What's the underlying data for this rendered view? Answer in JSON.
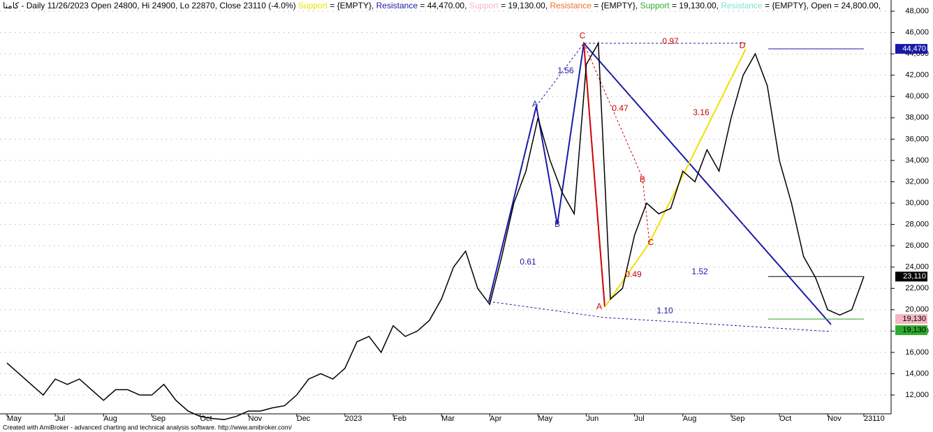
{
  "chart_data": {
    "type": "line",
    "header": [
      {
        "text": "كامنا - Daily 11/26/2023 Open 24800, Hi 24900, Lo 22870, Close 23110 (-4.0%) ",
        "color": "#000000"
      },
      {
        "text": "Support",
        "color": "#e6e600"
      },
      {
        "text": " = {EMPTY}, ",
        "color": "#000000"
      },
      {
        "text": "Resistance",
        "color": "#1a1aa8"
      },
      {
        "text": " = 44,470.00, ",
        "color": "#000000"
      },
      {
        "text": "Support",
        "color": "#f4b6c2"
      },
      {
        "text": " = 19,130.00, ",
        "color": "#000000"
      },
      {
        "text": "Resistance",
        "color": "#e8722a"
      },
      {
        "text": " = {EMPTY}, ",
        "color": "#000000"
      },
      {
        "text": "Support",
        "color": "#2eaa2e"
      },
      {
        "text": " = 19,130.00, ",
        "color": "#000000"
      },
      {
        "text": "Resistance",
        "color": "#7fe0d0"
      },
      {
        "text": " = {EMPTY}, Open = 24,800.00, ",
        "color": "#000000"
      }
    ],
    "footer": "Created with AmiBroker - advanced charting and technical analysis software. http://www.amibroker.com/",
    "categories": [
      "May",
      null,
      null,
      null,
      "Jul",
      null,
      null,
      null,
      "Aug",
      null,
      null,
      null,
      "Sep",
      null,
      null,
      null,
      "Oct",
      null,
      null,
      null,
      "Nov",
      null,
      null,
      null,
      "Dec",
      null,
      null,
      null,
      "2023",
      null,
      null,
      null,
      "Feb",
      null,
      null,
      null,
      "Mar",
      null,
      null,
      null,
      "Apr",
      null,
      null,
      null,
      "May",
      null,
      null,
      null,
      "Jun",
      null,
      null,
      null,
      "Jul",
      null,
      null,
      null,
      "Aug",
      null,
      null,
      null,
      "Sep",
      null,
      null,
      null,
      "Oct",
      null,
      null,
      null,
      "Nov",
      null,
      null,
      23110
    ],
    "series": [
      {
        "name": "Close",
        "color": "#000000",
        "values": [
          15000,
          14000,
          13000,
          12000,
          13500,
          13000,
          13500,
          12500,
          11500,
          12500,
          12500,
          12000,
          12000,
          13000,
          11500,
          10500,
          10000,
          9800,
          9700,
          10000,
          10500,
          10500,
          10800,
          11000,
          12000,
          13500,
          14000,
          13500,
          14500,
          17000,
          17500,
          16000,
          18500,
          17500,
          18000,
          19000,
          21000,
          24000,
          25500,
          22000,
          20500,
          25000,
          30000,
          33000,
          38000,
          34000,
          31000,
          29000,
          43000,
          45000,
          21000,
          22000,
          27000,
          30000,
          29000,
          29500,
          33000,
          32000,
          35000,
          33000,
          38000,
          42000,
          44000,
          41000,
          34000,
          30000,
          25000,
          23000,
          20000,
          19500,
          20000,
          23110
        ]
      }
    ],
    "ylim": [
      9450,
      49050
    ],
    "yticks": [
      {
        "value": 12000,
        "label": "12,000"
      },
      {
        "value": 14000,
        "label": "14,000"
      },
      {
        "value": 16000,
        "label": "16,000"
      },
      {
        "value": 18000,
        "label": "18,000"
      },
      {
        "value": 20000,
        "label": "20,000"
      },
      {
        "value": 22000,
        "label": "22,000"
      },
      {
        "value": 24000,
        "label": "24,000"
      },
      {
        "value": 26000,
        "label": "26,000"
      },
      {
        "value": 28000,
        "label": "28,000"
      },
      {
        "value": 30000,
        "label": "30,000"
      },
      {
        "value": 32000,
        "label": "32,000"
      },
      {
        "value": 34000,
        "label": "34,000"
      },
      {
        "value": 36000,
        "label": "36,000"
      },
      {
        "value": 38000,
        "label": "38,000"
      },
      {
        "value": 40000,
        "label": "40,000"
      },
      {
        "value": 42000,
        "label": "42,000"
      },
      {
        "value": 44000,
        "label": "44,000"
      },
      {
        "value": 46000,
        "label": "46,000"
      },
      {
        "value": 48000,
        "label": "48,000"
      }
    ],
    "price_markers": [
      {
        "value": 44470,
        "label": "44,470",
        "color": "#1a1aa8",
        "text_color": "#ffffff"
      },
      {
        "value": 23110,
        "label": "23,110",
        "color": "#000000",
        "text_color": "#ffffff"
      },
      {
        "value": 19130,
        "label": "19,130",
        "color": "#f4b6c2",
        "text_color": "#000000"
      },
      {
        "value": 19130,
        "label": "19,130",
        "color": "#2eaa2e",
        "text_color": "#000000"
      }
    ],
    "annotations": [
      {
        "text": "C",
        "color": "#d00000"
      },
      {
        "text": "D",
        "color": "#d00000"
      },
      {
        "text": "B",
        "color": "#d00000"
      },
      {
        "text": "A",
        "color": "#d00000"
      },
      {
        "text": "C",
        "color": "#d00000"
      },
      {
        "text": "A",
        "color": "#1a1aa8"
      },
      {
        "text": "B",
        "color": "#1a1aa8"
      },
      {
        "text": "0.97",
        "color": "#d00000"
      },
      {
        "text": "0.47",
        "color": "#d00000"
      },
      {
        "text": "3.16",
        "color": "#d00000"
      },
      {
        "text": "0.49",
        "color": "#d00000"
      },
      {
        "text": "1.56",
        "color": "#1a1aa8"
      },
      {
        "text": "0.61",
        "color": "#1a1aa8"
      },
      {
        "text": "1.52",
        "color": "#1a1aa8"
      },
      {
        "text": "1.10",
        "color": "#1a1aa8"
      }
    ]
  }
}
